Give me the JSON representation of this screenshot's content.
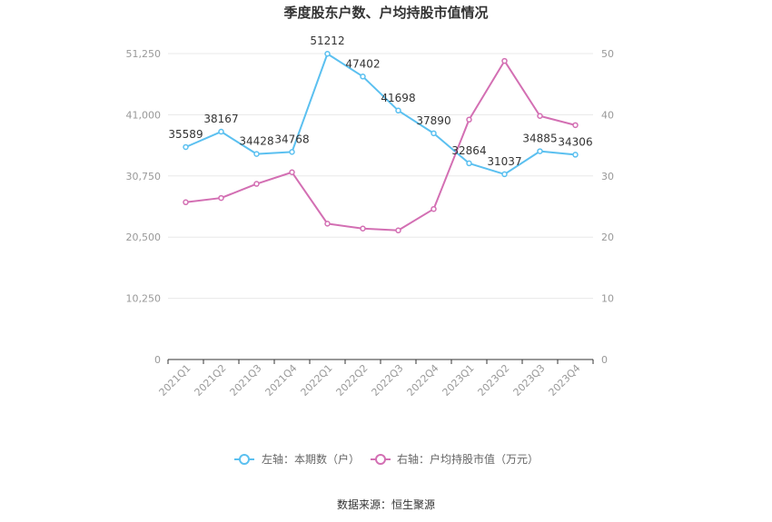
{
  "chart_data": {
    "type": "line",
    "title": "季度股东户数、户均持股市值情况",
    "categories": [
      "2021Q1",
      "2021Q2",
      "2021Q3",
      "2021Q4",
      "2022Q1",
      "2022Q2",
      "2022Q3",
      "2022Q4",
      "2023Q1",
      "2023Q2",
      "2023Q3",
      "2023Q4"
    ],
    "left_axis": {
      "ylim": [
        0,
        51250
      ],
      "ticks": [
        "0",
        "10,250",
        "20,500",
        "30,750",
        "41,000",
        "51,250"
      ]
    },
    "right_axis": {
      "ylim": [
        0,
        50
      ],
      "ticks": [
        "0",
        "10",
        "20",
        "30",
        "40",
        "50"
      ]
    },
    "series": [
      {
        "name": "左轴：本期数（户）",
        "axis": "left",
        "color": "#5bc0f0",
        "values": [
          35589,
          38167,
          34428,
          34768,
          51212,
          47402,
          41698,
          37890,
          32864,
          31037,
          34885,
          34306
        ],
        "labels": [
          "35589",
          "38167",
          "34428",
          "34768",
          "51212",
          "47402",
          "41698",
          "37890",
          "32864",
          "31037",
          "34885",
          "34306"
        ]
      },
      {
        "name": "右轴：户均持股市值（万元）",
        "axis": "right",
        "color": "#d36fb3",
        "values": [
          25.7,
          26.4,
          28.7,
          30.6,
          22.2,
          21.4,
          21.1,
          24.6,
          39.2,
          48.8,
          39.8,
          38.3
        ]
      }
    ],
    "grid": true,
    "legend_position": "bottom-center",
    "source": "数据来源：恒生聚源"
  }
}
